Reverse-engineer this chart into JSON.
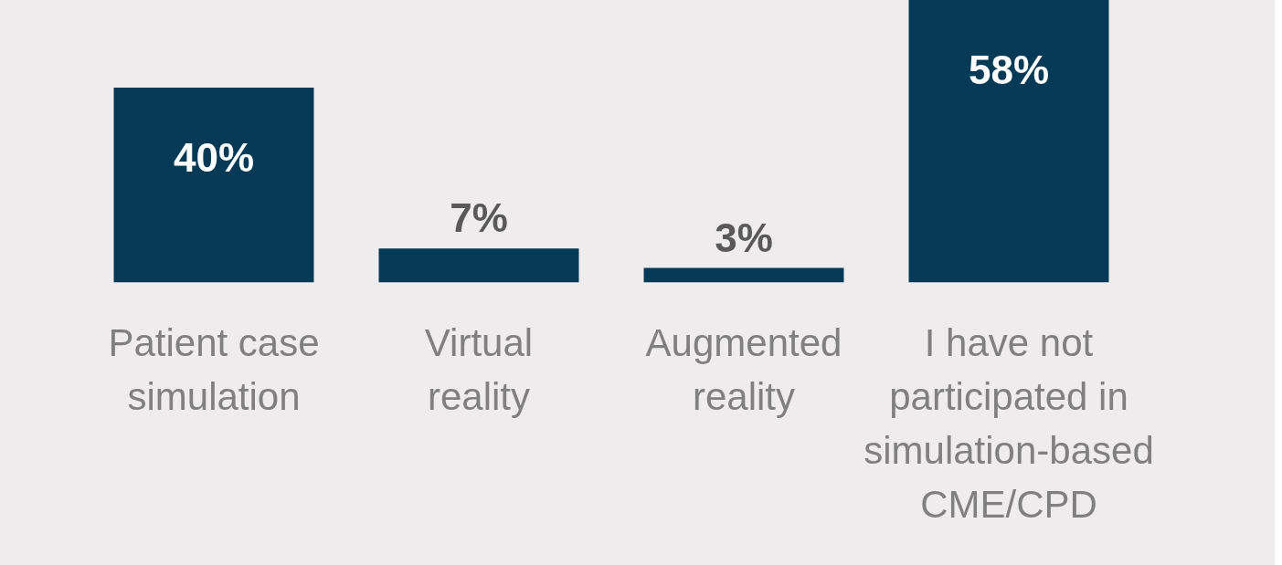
{
  "chart_data": {
    "type": "bar",
    "categories": [
      "Patient case simulation",
      "Virtual reality",
      "Augmented reality",
      "I have not participated in simulation-based CME/CPD"
    ],
    "values": [
      40,
      7,
      3,
      58
    ],
    "value_labels": [
      "40%",
      "7%",
      "3%",
      "58%"
    ],
    "color": "#053a56",
    "grid": false,
    "legend": false
  }
}
